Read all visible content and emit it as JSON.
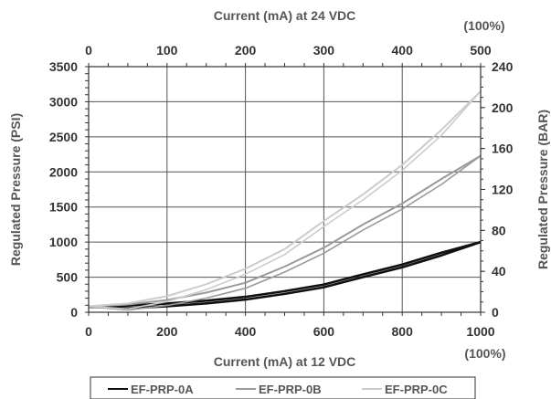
{
  "chart_data": {
    "type": "line",
    "title": "",
    "x_bottom": {
      "label": "Current (mA) at 12 VDC",
      "range": [
        0,
        1000
      ],
      "ticks": [
        "0",
        "200",
        "400",
        "600",
        "800",
        "1000"
      ],
      "end_note": "(100%)"
    },
    "x_top": {
      "label": "Current (mA) at 24 VDC",
      "range": [
        0,
        500
      ],
      "ticks": [
        "0",
        "100",
        "200",
        "300",
        "400",
        "500"
      ],
      "end_note": "(100%)"
    },
    "y_left": {
      "label": "Regulated Pressure (PSI)",
      "range": [
        0,
        3500
      ],
      "ticks": [
        "0",
        "500",
        "1000",
        "1500",
        "2000",
        "2500",
        "3000",
        "3500"
      ]
    },
    "y_right": {
      "label": "Regulated Pressure (BAR)",
      "range": [
        0,
        240
      ],
      "ticks": [
        "0",
        "40",
        "80",
        "120",
        "160",
        "200",
        "240"
      ]
    },
    "grid": true,
    "legend_position": "bottom",
    "x": [
      0,
      100,
      200,
      300,
      400,
      500,
      600,
      700,
      800,
      900,
      1000
    ],
    "series": [
      {
        "name": "EF-PRP-0A",
        "color": "#111111",
        "values": [
          80,
          95,
          125,
          165,
          220,
          300,
          395,
          540,
          680,
          850,
          1000
        ]
      },
      {
        "name": "EF-PRP-0B",
        "color": "#9a9a9a",
        "values": [
          80,
          110,
          175,
          280,
          420,
          650,
          920,
          1250,
          1550,
          1900,
          2230
        ]
      },
      {
        "name": "EF-PRP-0C",
        "color": "#cccccc",
        "values": [
          85,
          125,
          230,
          400,
          620,
          900,
          1300,
          1680,
          2100,
          2600,
          3150
        ]
      }
    ]
  }
}
